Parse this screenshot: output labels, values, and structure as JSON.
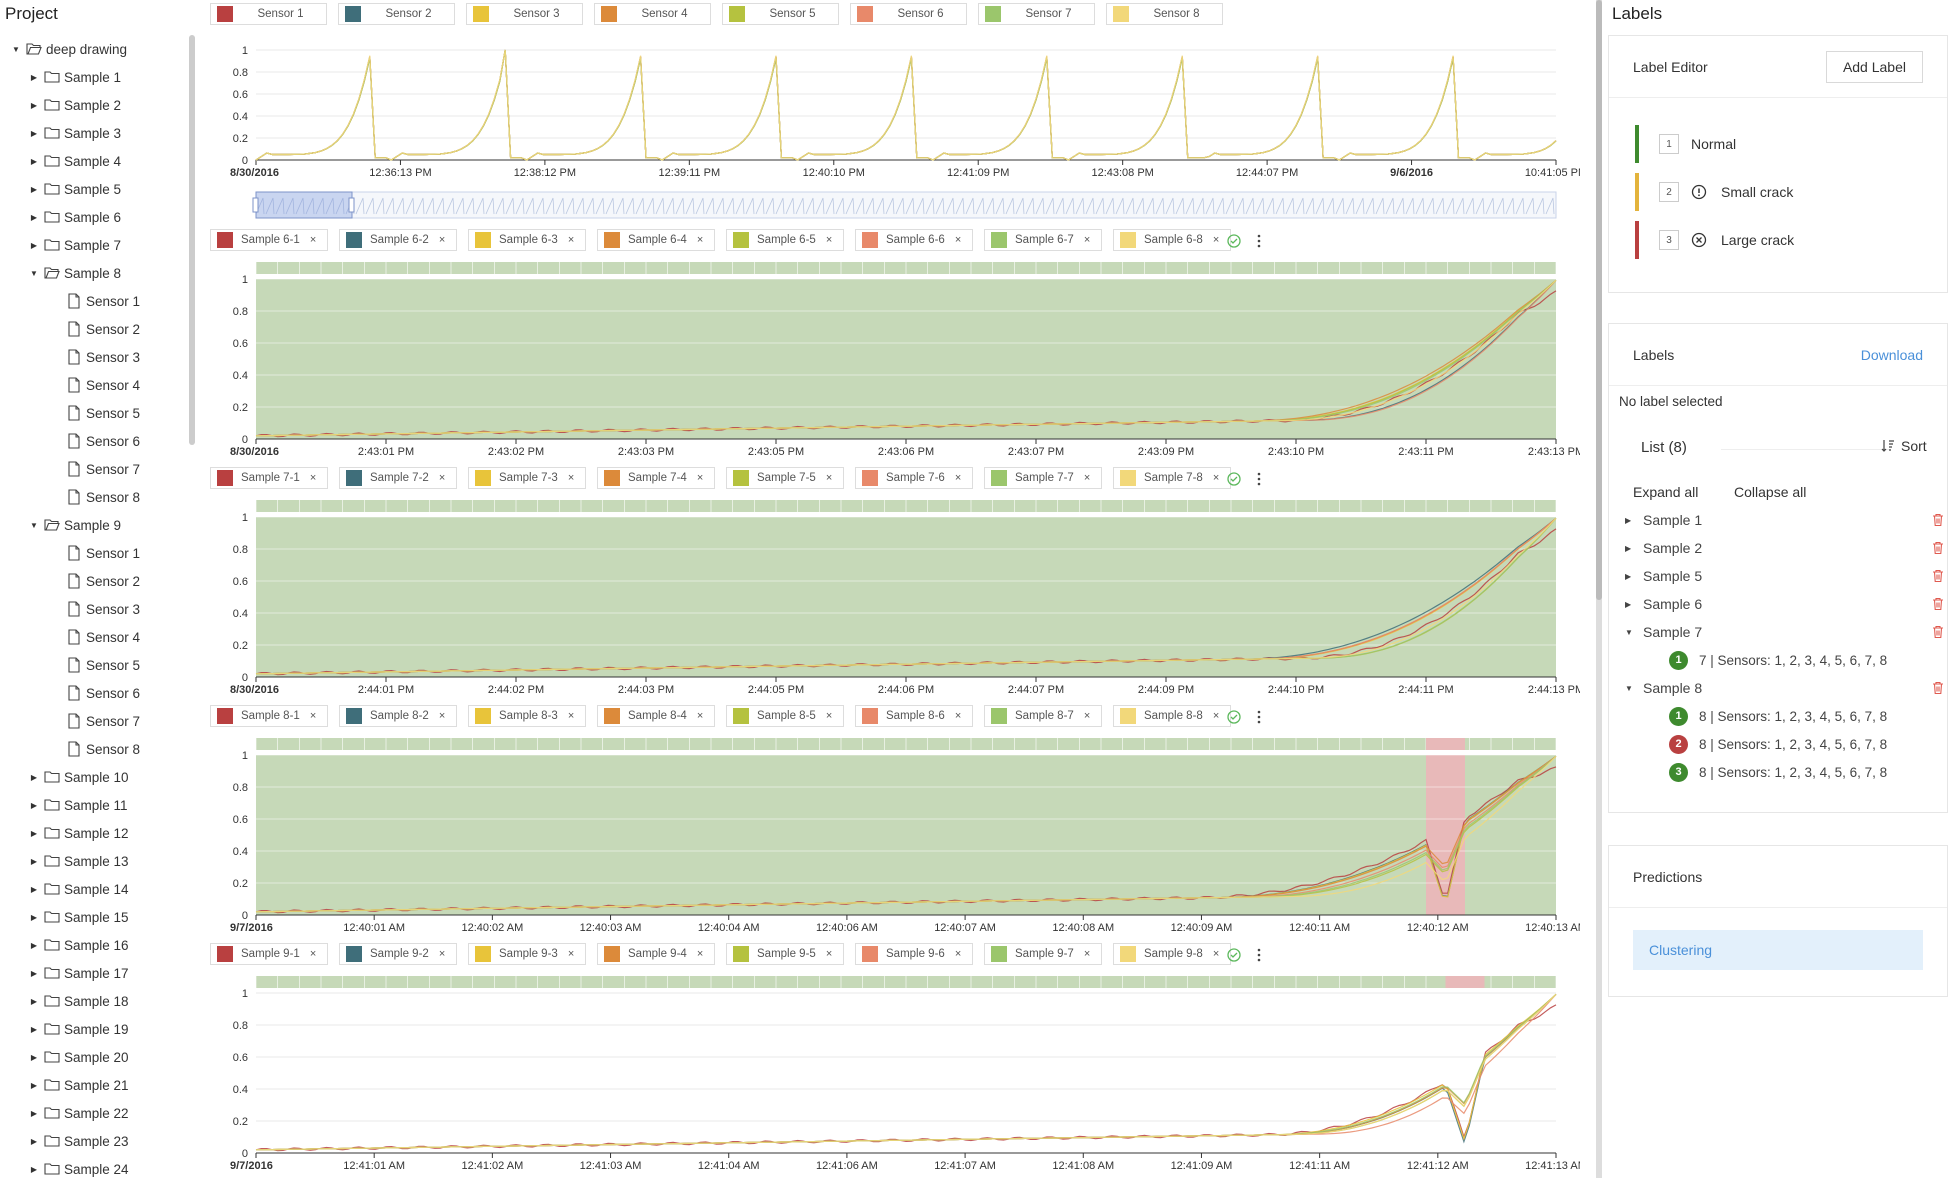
{
  "left_panel": {
    "title": "Project",
    "tree": [
      {
        "label": "deep drawing",
        "kind": "folder",
        "level": 0,
        "open": true
      },
      {
        "label": "Sample 1",
        "kind": "folder",
        "level": 1,
        "open": false
      },
      {
        "label": "Sample 2",
        "kind": "folder",
        "level": 1,
        "open": false
      },
      {
        "label": "Sample 3",
        "kind": "folder",
        "level": 1,
        "open": false
      },
      {
        "label": "Sample 4",
        "kind": "folder",
        "level": 1,
        "open": false
      },
      {
        "label": "Sample 5",
        "kind": "folder",
        "level": 1,
        "open": false
      },
      {
        "label": "Sample 6",
        "kind": "folder",
        "level": 1,
        "open": false
      },
      {
        "label": "Sample 7",
        "kind": "folder",
        "level": 1,
        "open": false
      },
      {
        "label": "Sample 8",
        "kind": "folder",
        "level": 1,
        "open": true
      },
      {
        "label": "Sensor 1",
        "kind": "file",
        "level": 2
      },
      {
        "label": "Sensor 2",
        "kind": "file",
        "level": 2
      },
      {
        "label": "Sensor 3",
        "kind": "file",
        "level": 2
      },
      {
        "label": "Sensor 4",
        "kind": "file",
        "level": 2
      },
      {
        "label": "Sensor 5",
        "kind": "file",
        "level": 2
      },
      {
        "label": "Sensor 6",
        "kind": "file",
        "level": 2
      },
      {
        "label": "Sensor 7",
        "kind": "file",
        "level": 2
      },
      {
        "label": "Sensor 8",
        "kind": "file",
        "level": 2
      },
      {
        "label": "Sample 9",
        "kind": "folder",
        "level": 1,
        "open": true
      },
      {
        "label": "Sensor 1",
        "kind": "file",
        "level": 2
      },
      {
        "label": "Sensor 2",
        "kind": "file",
        "level": 2
      },
      {
        "label": "Sensor 3",
        "kind": "file",
        "level": 2
      },
      {
        "label": "Sensor 4",
        "kind": "file",
        "level": 2
      },
      {
        "label": "Sensor 5",
        "kind": "file",
        "level": 2
      },
      {
        "label": "Sensor 6",
        "kind": "file",
        "level": 2
      },
      {
        "label": "Sensor 7",
        "kind": "file",
        "level": 2
      },
      {
        "label": "Sensor 8",
        "kind": "file",
        "level": 2
      },
      {
        "label": "Sample 10",
        "kind": "folder",
        "level": 1,
        "open": false
      },
      {
        "label": "Sample 11",
        "kind": "folder",
        "level": 1,
        "open": false
      },
      {
        "label": "Sample 12",
        "kind": "folder",
        "level": 1,
        "open": false
      },
      {
        "label": "Sample 13",
        "kind": "folder",
        "level": 1,
        "open": false
      },
      {
        "label": "Sample 14",
        "kind": "folder",
        "level": 1,
        "open": false
      },
      {
        "label": "Sample 15",
        "kind": "folder",
        "level": 1,
        "open": false
      },
      {
        "label": "Sample 16",
        "kind": "folder",
        "level": 1,
        "open": false
      },
      {
        "label": "Sample 17",
        "kind": "folder",
        "level": 1,
        "open": false
      },
      {
        "label": "Sample 18",
        "kind": "folder",
        "level": 1,
        "open": false
      },
      {
        "label": "Sample 19",
        "kind": "folder",
        "level": 1,
        "open": false
      },
      {
        "label": "Sample 20",
        "kind": "folder",
        "level": 1,
        "open": false
      },
      {
        "label": "Sample 21",
        "kind": "folder",
        "level": 1,
        "open": false
      },
      {
        "label": "Sample 22",
        "kind": "folder",
        "level": 1,
        "open": false
      },
      {
        "label": "Sample 23",
        "kind": "folder",
        "level": 1,
        "open": false
      },
      {
        "label": "Sample 24",
        "kind": "folder",
        "level": 1,
        "open": false
      }
    ]
  },
  "colors": {
    "sensors": [
      "#b94040",
      "#3f6e7a",
      "#e8c43a",
      "#dc8a3a",
      "#b5c23f",
      "#e8896a",
      "#9bc66c",
      "#f2d87a"
    ],
    "normal": "#3e8a2e",
    "small_crack": "#e3b33c",
    "large_crack": "#b94040",
    "band_normal": "#c6d9b8",
    "band_crack": "#e8b9b9",
    "accent": "#4a90d9",
    "ok_check": "#5cb85c"
  },
  "overview": {
    "legend": [
      "Sensor 1",
      "Sensor 2",
      "Sensor 3",
      "Sensor 4",
      "Sensor 5",
      "Sensor 6",
      "Sensor 7",
      "Sensor 8"
    ],
    "ytick_labels": [
      "1",
      "0.8",
      "0.6",
      "0.4",
      "0.2",
      "0"
    ],
    "xtick_labels": [
      "8/30/2016",
      "12:36:13 PM",
      "12:38:12 PM",
      "12:39:11 PM",
      "12:40:10 PM",
      "12:41:09 PM",
      "12:43:08 PM",
      "12:44:07 PM",
      "9/6/2016",
      "10:41:05 PM"
    ]
  },
  "samples": [
    {
      "id": "6",
      "legend": [
        "Sample 6-1",
        "Sample 6-2",
        "Sample 6-3",
        "Sample 6-4",
        "Sample 6-5",
        "Sample 6-6",
        "Sample 6-7",
        "Sample 6-8"
      ],
      "xtick_labels": [
        "8/30/2016",
        "2:43:01 PM",
        "2:43:02 PM",
        "2:43:03 PM",
        "2:43:05 PM",
        "2:43:06 PM",
        "2:43:07 PM",
        "2:43:09 PM",
        "2:43:10 PM",
        "2:43:11 PM",
        "2:43:13 PM"
      ],
      "label_band": "normal",
      "crack": null
    },
    {
      "id": "7",
      "legend": [
        "Sample 7-1",
        "Sample 7-2",
        "Sample 7-3",
        "Sample 7-4",
        "Sample 7-5",
        "Sample 7-6",
        "Sample 7-7",
        "Sample 7-8"
      ],
      "xtick_labels": [
        "8/30/2016",
        "2:44:01 PM",
        "2:44:02 PM",
        "2:44:03 PM",
        "2:44:05 PM",
        "2:44:06 PM",
        "2:44:07 PM",
        "2:44:09 PM",
        "2:44:10 PM",
        "2:44:11 PM",
        "2:44:13 PM"
      ],
      "label_band": "normal",
      "crack": null
    },
    {
      "id": "8",
      "legend": [
        "Sample 8-1",
        "Sample 8-2",
        "Sample 8-3",
        "Sample 8-4",
        "Sample 8-5",
        "Sample 8-6",
        "Sample 8-7",
        "Sample 8-8"
      ],
      "xtick_labels": [
        "9/7/2016",
        "12:40:01 AM",
        "12:40:02 AM",
        "12:40:03 AM",
        "12:40:04 AM",
        "12:40:06 AM",
        "12:40:07 AM",
        "12:40:08 AM",
        "12:40:09 AM",
        "12:40:11 AM",
        "12:40:12 AM",
        "12:40:13 AM"
      ],
      "label_band": "normal",
      "crack": [
        0.9,
        0.93
      ]
    },
    {
      "id": "9",
      "legend": [
        "Sample 9-1",
        "Sample 9-2",
        "Sample 9-3",
        "Sample 9-4",
        "Sample 9-5",
        "Sample 9-6",
        "Sample 9-7",
        "Sample 9-8"
      ],
      "xtick_labels": [
        "9/7/2016",
        "12:41:01 AM",
        "12:41:02 AM",
        "12:41:03 AM",
        "12:41:04 AM",
        "12:41:06 AM",
        "12:41:07 AM",
        "12:41:08 AM",
        "12:41:09 AM",
        "12:41:11 AM",
        "12:41:12 AM",
        "12:41:13 AM"
      ],
      "label_band": "none",
      "crack": [
        0.915,
        0.945
      ]
    }
  ],
  "right_panel": {
    "title": "Labels",
    "label_editor": {
      "title": "Label Editor",
      "add_button": "Add Label",
      "labels": [
        {
          "num": "1",
          "name": "Normal",
          "color": "#3e8a2e",
          "icon": "none"
        },
        {
          "num": "2",
          "name": "Small crack",
          "color": "#e3b33c",
          "icon": "exclamation-circle-icon"
        },
        {
          "num": "3",
          "name": "Large crack",
          "color": "#b94040",
          "icon": "x-circle-icon"
        }
      ]
    },
    "labels_panel": {
      "title": "Labels",
      "download": "Download",
      "status": "No label selected",
      "list_title": "List (8)",
      "sort": "Sort",
      "expand_all": "Expand all",
      "collapse_all": "Collapse all",
      "items": [
        {
          "name": "Sample 1",
          "open": false,
          "children": []
        },
        {
          "name": "Sample 2",
          "open": false,
          "children": []
        },
        {
          "name": "Sample 5",
          "open": false,
          "children": []
        },
        {
          "name": "Sample 6",
          "open": false,
          "children": []
        },
        {
          "name": "Sample 7",
          "open": true,
          "children": [
            {
              "badge": "1",
              "color": "#3e8a2e",
              "text": "7 | Sensors: 1, 2, 3, 4, 5, 6, 7, 8"
            }
          ]
        },
        {
          "name": "Sample 8",
          "open": true,
          "children": [
            {
              "badge": "1",
              "color": "#3e8a2e",
              "text": "8 | Sensors: 1, 2, 3, 4, 5, 6, 7, 8"
            },
            {
              "badge": "2",
              "color": "#b94040",
              "text": "8 | Sensors: 1, 2, 3, 4, 5, 6, 7, 8"
            },
            {
              "badge": "3",
              "color": "#3e8a2e",
              "text": "8 | Sensors: 1, 2, 3, 4, 5, 6, 7, 8"
            }
          ]
        }
      ]
    },
    "predictions": {
      "title": "Predictions",
      "clustering": "Clustering"
    }
  }
}
